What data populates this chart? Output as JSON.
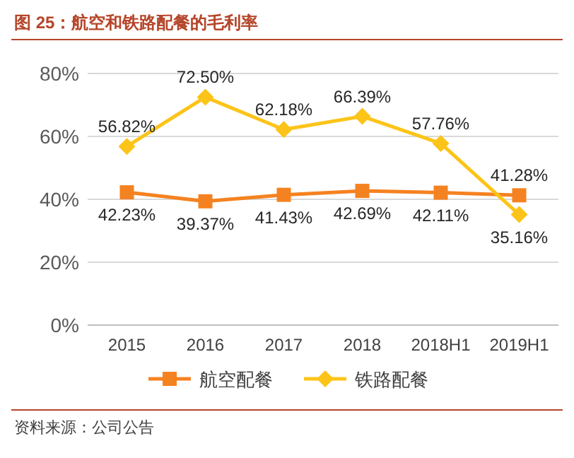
{
  "chart_data": {
    "type": "line",
    "title": "图 25：航空和铁路配餐的毛利率",
    "categories": [
      "2015",
      "2016",
      "2017",
      "2018",
      "2018H1",
      "2019H1"
    ],
    "series": [
      {
        "name": "航空配餐",
        "color": "#f58220",
        "marker": "square",
        "values": [
          42.23,
          39.37,
          41.43,
          42.69,
          42.11,
          41.28
        ],
        "value_labels": [
          "42.23%",
          "39.37%",
          "41.43%",
          "42.69%",
          "42.11%",
          "41.28%"
        ]
      },
      {
        "name": "铁路配餐",
        "color": "#fcc419",
        "marker": "diamond",
        "values": [
          56.82,
          72.5,
          62.18,
          66.39,
          57.76,
          35.16
        ],
        "value_labels": [
          "56.82%",
          "72.50%",
          "62.18%",
          "66.39%",
          "57.76%",
          "35.16%"
        ]
      }
    ],
    "ylim": [
      0,
      80
    ],
    "yticks": [
      {
        "value": 0,
        "label": "0%"
      },
      {
        "value": 20,
        "label": "20%"
      },
      {
        "value": 40,
        "label": "40%"
      },
      {
        "value": 60,
        "label": "60%"
      },
      {
        "value": 80,
        "label": "80%"
      }
    ],
    "grid": "y",
    "legend": "bottom",
    "annotations": [
      "资料来源：公司公告"
    ]
  }
}
